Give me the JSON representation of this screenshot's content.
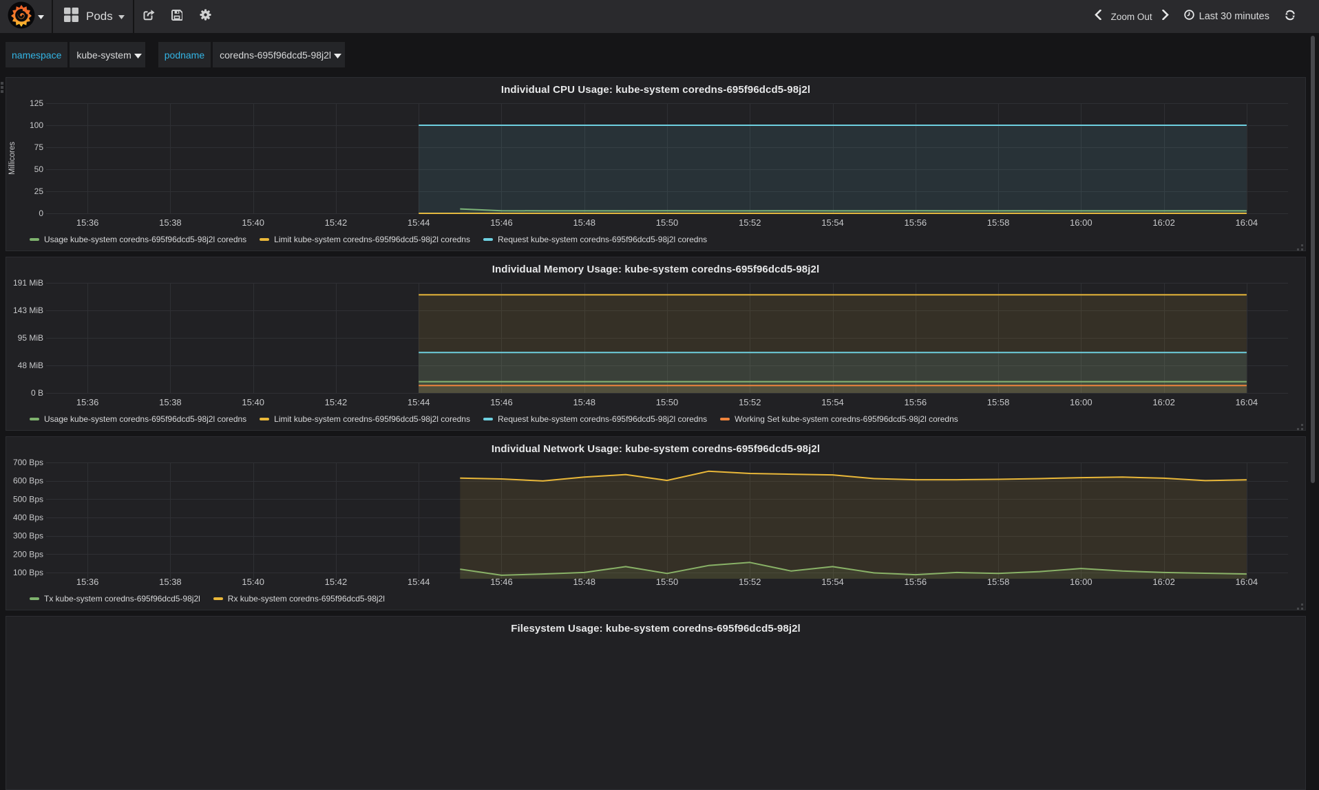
{
  "navbar": {
    "brand_icon": "grafana-logo",
    "dashboard": {
      "icon": "grid-icon",
      "title": "Pods"
    },
    "actions": [
      {
        "icon": "share-icon"
      },
      {
        "icon": "save-icon"
      },
      {
        "icon": "settings-gear-icon"
      }
    ],
    "time_controls": {
      "zoom_out_label": "Zoom Out",
      "range_label": "Last 30 minutes",
      "range_icon": "clock-icon",
      "refresh_icon": "refresh-icon"
    }
  },
  "variables": [
    {
      "label": "namespace",
      "value": "kube-system"
    },
    {
      "label": "podname",
      "value": "coredns-695f96dcd5-98j2l"
    }
  ],
  "colors": {
    "page_bg": "#151517",
    "panel_bg": "#212124",
    "navbar_bg": "#2a2a2d",
    "grid_line": "#2f3034",
    "axis_text": "#c7c8ca",
    "legend_text": "#d8d9da",
    "variable_label": "#33b5e5",
    "series_green": "#7EB26D",
    "series_yellow": "#EAB839",
    "series_blue": "#6ED0E0",
    "series_orange": "#EF843C"
  },
  "time_axis": {
    "start_label": "15:35",
    "end_label": "16:05",
    "tick_minutes": [
      1,
      3,
      5,
      7,
      9,
      11,
      13,
      15,
      17,
      19,
      21,
      23,
      25,
      27,
      29
    ],
    "tick_labels": [
      "15:36",
      "15:38",
      "15:40",
      "15:42",
      "15:44",
      "15:46",
      "15:48",
      "15:50",
      "15:52",
      "15:54",
      "15:56",
      "15:58",
      "16:00",
      "16:02",
      "16:04"
    ],
    "range_minutes": [
      0,
      30
    ]
  },
  "chart_data": [
    {
      "type": "line",
      "title": "Individual CPU Usage: kube-system coredns-695f96dcd5-98j2l",
      "ylabel": "Millicores",
      "ylim": [
        0,
        125
      ],
      "y_tick_values": [
        0,
        25,
        50,
        75,
        100,
        125
      ],
      "y_tick_labels": [
        "0",
        "25",
        "50",
        "75",
        "100",
        "125"
      ],
      "series": [
        {
          "name": "Usage kube-system coredns-695f96dcd5-98j2l coredns",
          "color": "#7EB26D",
          "start_minute": 10,
          "values": [
            5.0,
            3.0,
            2.8,
            2.8,
            2.8,
            2.9,
            2.8,
            2.8,
            2.9,
            2.8,
            2.8,
            2.9,
            2.8,
            2.8,
            2.9,
            2.8,
            2.8,
            2.8,
            2.9,
            2.8
          ]
        },
        {
          "name": "Limit kube-system coredns-695f96dcd5-98j2l coredns",
          "color": "#EAB839",
          "start_minute": 9,
          "values": [
            0,
            0,
            0,
            0,
            0,
            0,
            0,
            0,
            0,
            0,
            0,
            0,
            0,
            0,
            0,
            0,
            0,
            0,
            0,
            0,
            0
          ]
        },
        {
          "name": "Request kube-system coredns-695f96dcd5-98j2l coredns",
          "color": "#6ED0E0",
          "start_minute": 9,
          "values": [
            100,
            100,
            100,
            100,
            100,
            100,
            100,
            100,
            100,
            100,
            100,
            100,
            100,
            100,
            100,
            100,
            100,
            100,
            100,
            100,
            100
          ]
        }
      ]
    },
    {
      "type": "line",
      "title": "Individual Memory Usage: kube-system coredns-695f96dcd5-98j2l",
      "ylabel": "",
      "unit": "MiB",
      "ylim": [
        0,
        190.73
      ],
      "y_tick_values": [
        0,
        47.68,
        95.37,
        143.05,
        190.73
      ],
      "y_tick_labels": [
        "0 B",
        "48 MiB",
        "95 MiB",
        "143 MiB",
        "191 MiB"
      ],
      "series": [
        {
          "name": "Usage kube-system coredns-695f96dcd5-98j2l coredns",
          "color": "#7EB26D",
          "start_minute": 9,
          "values": [
            19.6,
            19.6,
            19.6,
            19.6,
            19.6,
            19.6,
            19.6,
            19.6,
            19.6,
            19.6,
            19.6,
            19.6,
            19.6,
            19.6,
            19.6,
            19.6,
            19.6,
            19.6,
            19.6,
            19.6,
            19.6
          ]
        },
        {
          "name": "Limit kube-system coredns-695f96dcd5-98j2l coredns",
          "color": "#EAB839",
          "start_minute": 9,
          "values": [
            170,
            170,
            170,
            170,
            170,
            170,
            170,
            170,
            170,
            170,
            170,
            170,
            170,
            170,
            170,
            170,
            170,
            170,
            170,
            170,
            170
          ]
        },
        {
          "name": "Request kube-system coredns-695f96dcd5-98j2l coredns",
          "color": "#6ED0E0",
          "start_minute": 9,
          "values": [
            70,
            70,
            70,
            70,
            70,
            70,
            70,
            70,
            70,
            70,
            70,
            70,
            70,
            70,
            70,
            70,
            70,
            70,
            70,
            70,
            70
          ]
        },
        {
          "name": "Working Set kube-system coredns-695f96dcd5-98j2l coredns",
          "color": "#EF843C",
          "start_minute": 9,
          "values": [
            12.9,
            12.9,
            12.9,
            12.9,
            12.9,
            12.9,
            12.9,
            12.9,
            12.9,
            12.9,
            12.9,
            12.9,
            12.9,
            12.9,
            12.9,
            12.9,
            12.9,
            12.9,
            12.9,
            12.9,
            12.9
          ]
        }
      ]
    },
    {
      "type": "line",
      "title": "Individual Network Usage: kube-system coredns-695f96dcd5-98j2l",
      "ylabel": "",
      "unit": "Bps",
      "ylim": [
        66,
        700
      ],
      "y_tick_values": [
        100,
        200,
        300,
        400,
        500,
        600,
        700
      ],
      "y_tick_labels": [
        "100 Bps",
        "200 Bps",
        "300 Bps",
        "400 Bps",
        "500 Bps",
        "600 Bps",
        "700 Bps"
      ],
      "series": [
        {
          "name": "Tx kube-system coredns-695f96dcd5-98j2l",
          "color": "#7EB26D",
          "start_minute": 10,
          "values": [
            118,
            85,
            92,
            100,
            132,
            95,
            138,
            155,
            108,
            132,
            98,
            88,
            100,
            95,
            105,
            122,
            108,
            100,
            96,
            92
          ]
        },
        {
          "name": "Rx kube-system coredns-695f96dcd5-98j2l",
          "color": "#EAB839",
          "start_minute": 10,
          "values": [
            615,
            610,
            599,
            620,
            634,
            602,
            652,
            640,
            636,
            632,
            612,
            606,
            606,
            608,
            612,
            617,
            620,
            614,
            601,
            605
          ]
        }
      ]
    },
    {
      "type": "line",
      "title": "Filesystem Usage: kube-system coredns-695f96dcd5-98j2l",
      "ylabel": "",
      "clipped": true,
      "series": []
    }
  ]
}
